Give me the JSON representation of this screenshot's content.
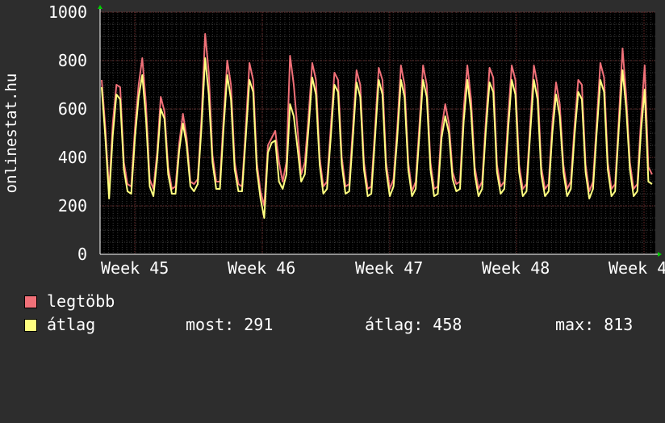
{
  "chart_data": {
    "type": "line",
    "ylabel": "onlinestat.hu",
    "ylim": [
      0,
      1000
    ],
    "yticks": [
      0,
      200,
      400,
      600,
      800,
      1000
    ],
    "xticks": [
      "Week 45",
      "Week 46",
      "Week 47",
      "Week 48",
      "Week 4"
    ],
    "grid": true,
    "background": "#000000",
    "series": [
      {
        "name": "legtöbb",
        "color": "#f07078",
        "values": [
          720,
          520,
          260,
          540,
          700,
          690,
          380,
          290,
          280,
          520,
          700,
          810,
          620,
          310,
          270,
          420,
          650,
          590,
          360,
          270,
          280,
          460,
          580,
          480,
          300,
          290,
          310,
          560,
          910,
          750,
          410,
          300,
          300,
          560,
          800,
          700,
          380,
          290,
          280,
          520,
          790,
          720,
          380,
          260,
          200,
          450,
          480,
          510,
          380,
          300,
          380,
          820,
          700,
          520,
          330,
          380,
          570,
          790,
          720,
          400,
          280,
          300,
          520,
          750,
          720,
          400,
          280,
          290,
          520,
          760,
          700,
          380,
          270,
          280,
          520,
          770,
          720,
          380,
          270,
          310,
          520,
          780,
          700,
          380,
          260,
          300,
          530,
          780,
          700,
          380,
          270,
          280,
          520,
          620,
          540,
          340,
          290,
          300,
          600,
          780,
          640,
          360,
          270,
          300,
          550,
          770,
          730,
          370,
          280,
          300,
          560,
          780,
          720,
          370,
          270,
          290,
          540,
          780,
          700,
          360,
          270,
          290,
          540,
          710,
          620,
          370,
          270,
          300,
          530,
          720,
          700,
          370,
          260,
          300,
          540,
          790,
          730,
          380,
          270,
          290,
          560,
          850,
          650,
          380,
          270,
          290,
          560,
          780,
          360,
          330
        ]
      },
      {
        "name": "átlag",
        "color": "#ffff80",
        "values": [
          690,
          480,
          230,
          490,
          660,
          640,
          350,
          260,
          250,
          480,
          650,
          740,
          560,
          280,
          240,
          390,
          600,
          560,
          330,
          250,
          250,
          430,
          540,
          450,
          280,
          260,
          290,
          520,
          810,
          660,
          380,
          270,
          270,
          520,
          740,
          640,
          350,
          260,
          260,
          480,
          720,
          670,
          350,
          230,
          150,
          420,
          460,
          470,
          300,
          270,
          330,
          620,
          570,
          440,
          300,
          330,
          520,
          730,
          660,
          370,
          250,
          270,
          480,
          700,
          670,
          370,
          250,
          260,
          480,
          710,
          650,
          350,
          240,
          250,
          480,
          720,
          660,
          350,
          240,
          280,
          480,
          720,
          650,
          350,
          240,
          270,
          490,
          720,
          650,
          350,
          240,
          250,
          480,
          570,
          500,
          310,
          260,
          270,
          550,
          720,
          590,
          330,
          240,
          270,
          510,
          710,
          670,
          340,
          250,
          270,
          510,
          720,
          660,
          340,
          240,
          260,
          500,
          720,
          640,
          330,
          240,
          260,
          500,
          660,
          570,
          340,
          240,
          270,
          490,
          670,
          640,
          340,
          230,
          270,
          500,
          720,
          670,
          350,
          240,
          260,
          520,
          760,
          600,
          350,
          240,
          260,
          510,
          680,
          300,
          290
        ]
      }
    ]
  },
  "legend": {
    "max_label": "legtöbb",
    "avg_label": "átlag",
    "now_label": "most:",
    "now_value": "291",
    "avg_stat_label": "átlag:",
    "avg_stat_value": "458",
    "max_stat_label": "max:",
    "max_stat_value": "813"
  },
  "colors": {
    "page_background": "#2d2d2d",
    "plot_background": "#000000",
    "grid_minor": "#3a3a3a",
    "grid_major": "#6a2a2a",
    "axis_arrow": "#00cc00",
    "text": "#ffffff"
  }
}
